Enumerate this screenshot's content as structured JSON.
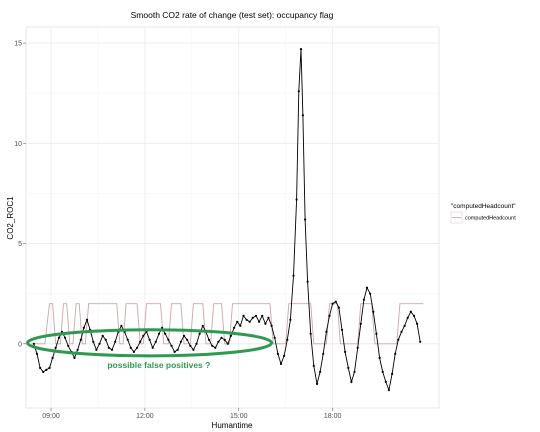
{
  "chart_data": {
    "type": "line",
    "title": "Smooth CO2 rate of change (test set): occupancy flag",
    "xlabel": "Humantime",
    "ylabel": "CO2_ROC1",
    "xlim": [
      8.2,
      21.4
    ],
    "ylim": [
      -3.2,
      15.8
    ],
    "x_ticks": [
      {
        "v": 9,
        "label": "09:00"
      },
      {
        "v": 12,
        "label": "12:00"
      },
      {
        "v": 15,
        "label": "15:00"
      },
      {
        "v": 18,
        "label": "18:00"
      }
    ],
    "y_ticks": [
      {
        "v": 0,
        "label": "0"
      },
      {
        "v": 5,
        "label": "5"
      },
      {
        "v": 10,
        "label": "10"
      },
      {
        "v": 15,
        "label": "15"
      }
    ],
    "grid": true,
    "legend": {
      "title": "\"computedHeadcount\"",
      "entry": "computedHeadcount",
      "placement": "right"
    },
    "series": [
      {
        "role": "co2_roc",
        "color": "#000000",
        "points": [
          [
            8.45,
            0
          ],
          [
            8.55,
            -0.5
          ],
          [
            8.65,
            -1.2
          ],
          [
            8.75,
            -1.4
          ],
          [
            8.85,
            -1.3
          ],
          [
            8.95,
            -1.2
          ],
          [
            9.05,
            -0.7
          ],
          [
            9.15,
            -0.2
          ],
          [
            9.25,
            0.3
          ],
          [
            9.35,
            0.6
          ],
          [
            9.45,
            0.3
          ],
          [
            9.55,
            -0.1
          ],
          [
            9.65,
            -0.4
          ],
          [
            9.75,
            -0.7
          ],
          [
            9.85,
            -0.3
          ],
          [
            9.95,
            0.2
          ],
          [
            10.05,
            0.8
          ],
          [
            10.15,
            1.2
          ],
          [
            10.25,
            0.7
          ],
          [
            10.35,
            0.1
          ],
          [
            10.45,
            -0.3
          ],
          [
            10.55,
            0
          ],
          [
            10.65,
            0.4
          ],
          [
            10.75,
            0.2
          ],
          [
            10.85,
            -0.2
          ],
          [
            10.95,
            -0.3
          ],
          [
            11.05,
            0.1
          ],
          [
            11.15,
            0.6
          ],
          [
            11.25,
            0.9
          ],
          [
            11.35,
            0.6
          ],
          [
            11.45,
            0.2
          ],
          [
            11.55,
            -0.2
          ],
          [
            11.65,
            -0.4
          ],
          [
            11.75,
            -0.2
          ],
          [
            11.85,
            0.1
          ],
          [
            11.95,
            0.4
          ],
          [
            12.05,
            0.6
          ],
          [
            12.15,
            0.2
          ],
          [
            12.25,
            -0.2
          ],
          [
            12.35,
            0.1
          ],
          [
            12.45,
            0.5
          ],
          [
            12.55,
            0.8
          ],
          [
            12.65,
            0.5
          ],
          [
            12.75,
            0.2
          ],
          [
            12.85,
            -0.1
          ],
          [
            12.95,
            -0.4
          ],
          [
            13.05,
            -0.3
          ],
          [
            13.15,
            0.1
          ],
          [
            13.25,
            0.4
          ],
          [
            13.35,
            0.2
          ],
          [
            13.45,
            -0.1
          ],
          [
            13.55,
            -0.3
          ],
          [
            13.65,
            0
          ],
          [
            13.75,
            0.5
          ],
          [
            13.85,
            0.9
          ],
          [
            13.95,
            0.6
          ],
          [
            14.05,
            0.2
          ],
          [
            14.15,
            -0.1
          ],
          [
            14.25,
            -0.2
          ],
          [
            14.35,
            0.1
          ],
          [
            14.45,
            0.3
          ],
          [
            14.55,
            0.2
          ],
          [
            14.65,
            0
          ],
          [
            14.75,
            0.4
          ],
          [
            14.85,
            0.8
          ],
          [
            14.95,
            1.1
          ],
          [
            15.05,
            0.9
          ],
          [
            15.15,
            1.4
          ],
          [
            15.25,
            1.2
          ],
          [
            15.35,
            1.1
          ],
          [
            15.45,
            1.3
          ],
          [
            15.55,
            1.4
          ],
          [
            15.65,
            1.1
          ],
          [
            15.75,
            1.4
          ],
          [
            15.85,
            1
          ],
          [
            15.95,
            1.3
          ],
          [
            16.05,
            0.9
          ],
          [
            16.15,
            0.3
          ],
          [
            16.25,
            -0.5
          ],
          [
            16.35,
            -1
          ],
          [
            16.45,
            -0.6
          ],
          [
            16.55,
            0.2
          ],
          [
            16.65,
            1.2
          ],
          [
            16.75,
            3.4
          ],
          [
            16.85,
            7.2
          ],
          [
            16.92,
            12.6
          ],
          [
            16.99,
            14.7
          ],
          [
            17.05,
            11.4
          ],
          [
            17.12,
            6.2
          ],
          [
            17.2,
            3.1
          ],
          [
            17.3,
            0.5
          ],
          [
            17.4,
            -1.1
          ],
          [
            17.5,
            -2
          ],
          [
            17.6,
            -1.4
          ],
          [
            17.7,
            -0.5
          ],
          [
            17.8,
            0.6
          ],
          [
            17.9,
            1.4
          ],
          [
            18,
            2
          ],
          [
            18.1,
            2.1
          ],
          [
            18.2,
            1.8
          ],
          [
            18.3,
            0.7
          ],
          [
            18.4,
            -0.4
          ],
          [
            18.5,
            -1.2
          ],
          [
            18.6,
            -1.9
          ],
          [
            18.7,
            -1.4
          ],
          [
            18.8,
            -0.2
          ],
          [
            18.9,
            1
          ],
          [
            19,
            2.2
          ],
          [
            19.1,
            2.8
          ],
          [
            19.2,
            2.5
          ],
          [
            19.3,
            1.6
          ],
          [
            19.4,
            0.5
          ],
          [
            19.5,
            -0.7
          ],
          [
            19.6,
            -1.4
          ],
          [
            19.7,
            -1.9
          ],
          [
            19.8,
            -2.3
          ],
          [
            19.9,
            -1.5
          ],
          [
            20,
            -0.5
          ],
          [
            20.1,
            0.2
          ],
          [
            20.2,
            0.6
          ],
          [
            20.3,
            0.9
          ],
          [
            20.4,
            1.3
          ],
          [
            20.5,
            1.6
          ],
          [
            20.6,
            1.4
          ],
          [
            20.7,
            1
          ],
          [
            20.8,
            0.1
          ]
        ]
      },
      {
        "role": "occupancy_flag",
        "color": "#c9a8a8",
        "points": [
          [
            8.45,
            0
          ],
          [
            8.8,
            0
          ],
          [
            8.95,
            2
          ],
          [
            9.05,
            2
          ],
          [
            9.15,
            0
          ],
          [
            9.3,
            0
          ],
          [
            9.4,
            2
          ],
          [
            9.5,
            2
          ],
          [
            9.6,
            0
          ],
          [
            9.7,
            0
          ],
          [
            9.8,
            2
          ],
          [
            9.9,
            2
          ],
          [
            10,
            0
          ],
          [
            10.1,
            0
          ],
          [
            10.2,
            2
          ],
          [
            11.1,
            2
          ],
          [
            11.2,
            0
          ],
          [
            11.3,
            0
          ],
          [
            11.4,
            2
          ],
          [
            11.75,
            2
          ],
          [
            11.85,
            0
          ],
          [
            11.95,
            0
          ],
          [
            12.05,
            2
          ],
          [
            12.5,
            2
          ],
          [
            12.6,
            0
          ],
          [
            12.75,
            0
          ],
          [
            12.85,
            2
          ],
          [
            13.15,
            2
          ],
          [
            13.25,
            0
          ],
          [
            13.45,
            0
          ],
          [
            13.55,
            2
          ],
          [
            13.85,
            2
          ],
          [
            13.95,
            0
          ],
          [
            14.1,
            0
          ],
          [
            14.2,
            2
          ],
          [
            14.45,
            2
          ],
          [
            14.55,
            0
          ],
          [
            14.7,
            0
          ],
          [
            14.8,
            2
          ],
          [
            16,
            2
          ],
          [
            16.1,
            0
          ],
          [
            16.5,
            0
          ],
          [
            16.6,
            2
          ],
          [
            17.3,
            2
          ],
          [
            17.4,
            0
          ],
          [
            17.8,
            0
          ],
          [
            17.9,
            2
          ],
          [
            18.15,
            2
          ],
          [
            18.25,
            0
          ],
          [
            18.8,
            0
          ],
          [
            18.9,
            2
          ],
          [
            19.25,
            2
          ],
          [
            19.35,
            0
          ],
          [
            20.05,
            0
          ],
          [
            20.15,
            2
          ],
          [
            20.9,
            2
          ]
        ]
      }
    ],
    "annotation": {
      "text": "possible false positives ?",
      "x": 10.8,
      "y": -1.2
    },
    "ellipse": {
      "cx": 12.15,
      "cy": 0.05,
      "rx": 3.9,
      "ry": 0.65,
      "color": "#2e9a50"
    }
  }
}
